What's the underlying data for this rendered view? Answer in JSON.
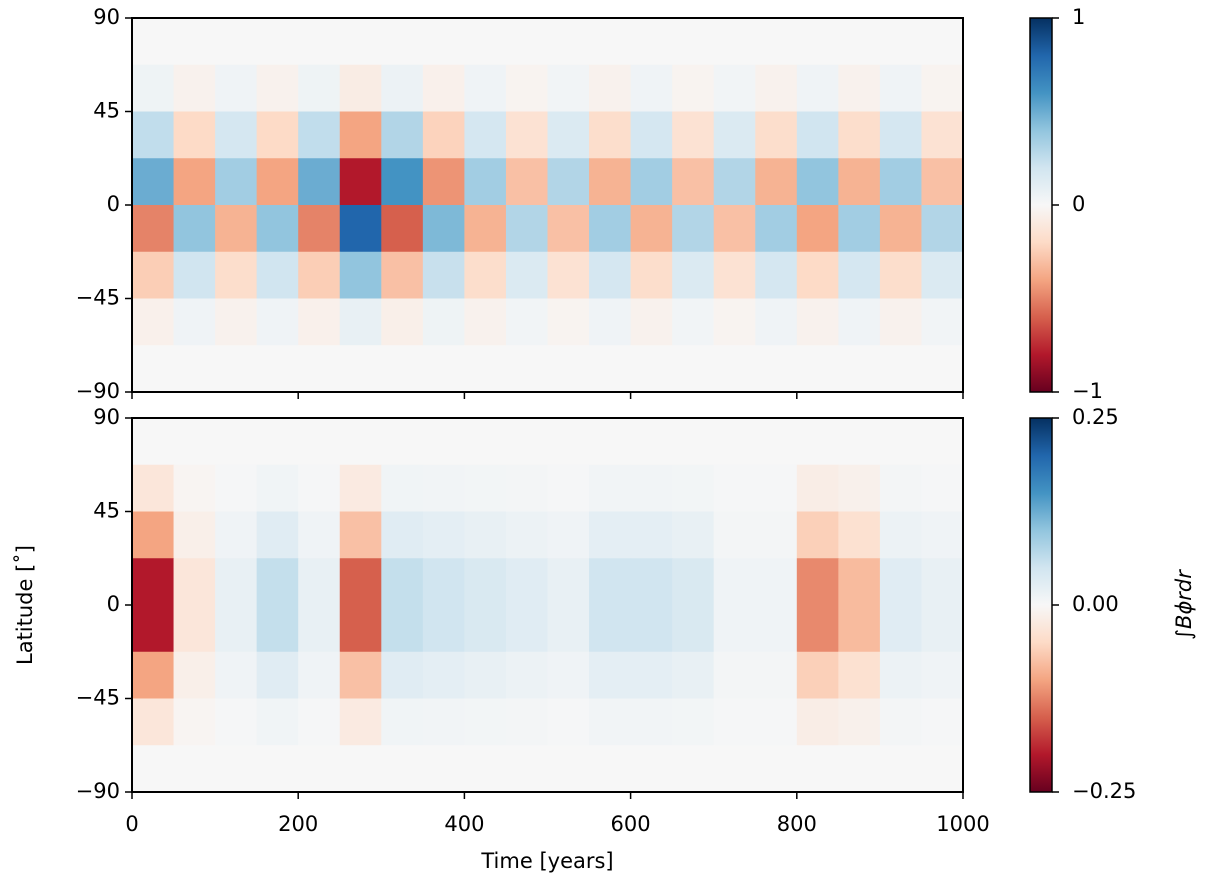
{
  "chart_data": [
    {
      "type": "heatmap",
      "colormap": "RdBu",
      "xlim": [
        0,
        1000
      ],
      "ylim": [
        -90,
        90
      ],
      "xticks": [
        0,
        200,
        400,
        600,
        800,
        1000
      ],
      "yticks": [
        90,
        45,
        0,
        {
          "value": -45,
          "label": "−45"
        },
        {
          "value": -90,
          "label": "−90"
        }
      ],
      "x_bins": [
        0,
        50,
        100,
        150,
        200,
        250,
        300,
        350,
        400,
        450,
        500,
        550,
        600,
        650,
        700,
        750,
        800,
        850,
        900,
        950,
        1000
      ],
      "y_bins": [
        90,
        67.5,
        45,
        22.5,
        0,
        -22.5,
        -45,
        -67.5,
        -90
      ],
      "z": [
        [
          0,
          0,
          0,
          0,
          0,
          0,
          0,
          0,
          0,
          0,
          0,
          0,
          0,
          0,
          0,
          0,
          0,
          0,
          0,
          0
        ],
        [
          0.05,
          -0.04,
          0.04,
          -0.04,
          0.05,
          -0.08,
          0.06,
          -0.05,
          0.04,
          -0.03,
          0.03,
          -0.04,
          0.04,
          -0.03,
          0.03,
          -0.04,
          0.04,
          -0.04,
          0.04,
          -0.03
        ],
        [
          0.25,
          -0.2,
          0.18,
          -0.2,
          0.25,
          -0.4,
          0.3,
          -0.23,
          0.18,
          -0.15,
          0.15,
          -0.18,
          0.18,
          -0.15,
          0.15,
          -0.18,
          0.2,
          -0.18,
          0.18,
          -0.15
        ],
        [
          0.5,
          -0.4,
          0.35,
          -0.4,
          0.5,
          -0.8,
          0.6,
          -0.45,
          0.35,
          -0.3,
          0.3,
          -0.35,
          0.35,
          -0.3,
          0.3,
          -0.35,
          0.4,
          -0.35,
          0.35,
          -0.3
        ],
        [
          -0.5,
          0.4,
          -0.35,
          0.4,
          -0.5,
          0.8,
          -0.6,
          0.45,
          -0.35,
          0.3,
          -0.3,
          0.35,
          -0.35,
          0.3,
          -0.3,
          0.35,
          -0.4,
          0.35,
          -0.35,
          0.3
        ],
        [
          -0.25,
          0.2,
          -0.18,
          0.2,
          -0.25,
          0.4,
          -0.3,
          0.23,
          -0.18,
          0.15,
          -0.15,
          0.18,
          -0.18,
          0.15,
          -0.15,
          0.18,
          -0.2,
          0.18,
          -0.18,
          0.15
        ],
        [
          -0.05,
          0.04,
          -0.04,
          0.04,
          -0.05,
          0.08,
          -0.06,
          0.05,
          -0.04,
          0.03,
          -0.03,
          0.04,
          -0.04,
          0.03,
          -0.03,
          0.04,
          -0.04,
          0.04,
          -0.04,
          0.03
        ],
        [
          0,
          0,
          0,
          0,
          0,
          0,
          0,
          0,
          0,
          0,
          0,
          0,
          0,
          0,
          0,
          0,
          0,
          0,
          0,
          0
        ]
      ],
      "colorbar": {
        "lim": [
          -1,
          1
        ],
        "ticks": [
          1,
          0,
          {
            "value": -1,
            "label": "−1"
          }
        ]
      }
    },
    {
      "type": "heatmap",
      "colormap": "RdBu",
      "xlabel": "Time [years]",
      "ylabel": "Latitude [˚]",
      "xlim": [
        0,
        1000
      ],
      "ylim": [
        -90,
        90
      ],
      "xticks": [
        0,
        200,
        400,
        600,
        800,
        1000
      ],
      "yticks": [
        90,
        45,
        0,
        {
          "value": -45,
          "label": "−45"
        },
        {
          "value": -90,
          "label": "−90"
        }
      ],
      "x_bins": [
        0,
        50,
        100,
        150,
        200,
        250,
        300,
        350,
        400,
        450,
        500,
        550,
        600,
        650,
        700,
        750,
        800,
        850,
        900,
        950,
        1000
      ],
      "y_bins": [
        90,
        67.5,
        45,
        22.5,
        0,
        -22.5,
        -45,
        -67.5,
        -90
      ],
      "z": [
        [
          0,
          0,
          0,
          0,
          0,
          0,
          0,
          0,
          0,
          0,
          0,
          0,
          0,
          0,
          0,
          0,
          0,
          0,
          0,
          0
        ],
        [
          -0.03,
          -0.005,
          0.003,
          0.009,
          0.003,
          -0.023,
          0.009,
          0.008,
          0.006,
          0.005,
          0.003,
          0.008,
          0.008,
          0.006,
          0.002,
          0.002,
          -0.018,
          -0.012,
          0.005,
          0.003
        ],
        [
          -0.1,
          -0.015,
          0.01,
          0.03,
          0.01,
          -0.075,
          0.03,
          0.025,
          0.02,
          0.015,
          0.01,
          0.025,
          0.025,
          0.02,
          0.005,
          0.005,
          -0.06,
          -0.04,
          0.015,
          0.01
        ],
        [
          -0.2,
          -0.03,
          0.02,
          0.06,
          0.02,
          -0.15,
          0.06,
          0.05,
          0.04,
          0.03,
          0.02,
          0.05,
          0.05,
          0.04,
          0.01,
          0.01,
          -0.12,
          -0.08,
          0.03,
          0.02
        ],
        [
          -0.2,
          -0.03,
          0.02,
          0.06,
          0.02,
          -0.15,
          0.06,
          0.05,
          0.04,
          0.03,
          0.02,
          0.05,
          0.05,
          0.04,
          0.01,
          0.01,
          -0.12,
          -0.08,
          0.03,
          0.02
        ],
        [
          -0.1,
          -0.015,
          0.01,
          0.03,
          0.01,
          -0.075,
          0.03,
          0.025,
          0.02,
          0.015,
          0.01,
          0.025,
          0.025,
          0.02,
          0.005,
          0.005,
          -0.06,
          -0.04,
          0.015,
          0.01
        ],
        [
          -0.03,
          -0.005,
          0.003,
          0.009,
          0.003,
          -0.023,
          0.009,
          0.008,
          0.006,
          0.005,
          0.003,
          0.008,
          0.008,
          0.006,
          0.002,
          0.002,
          -0.018,
          -0.012,
          0.005,
          0.003
        ],
        [
          0,
          0,
          0,
          0,
          0,
          0,
          0,
          0,
          0,
          0,
          0,
          0,
          0,
          0,
          0,
          0,
          0,
          0,
          0,
          0
        ]
      ],
      "colorbar": {
        "lim": [
          -0.25,
          0.25
        ],
        "label": "∫Bϕrdr",
        "ticks": [
          0.25,
          {
            "value": 0,
            "label": "0.00"
          },
          {
            "value": -0.25,
            "label": "−0.25"
          }
        ]
      }
    }
  ]
}
